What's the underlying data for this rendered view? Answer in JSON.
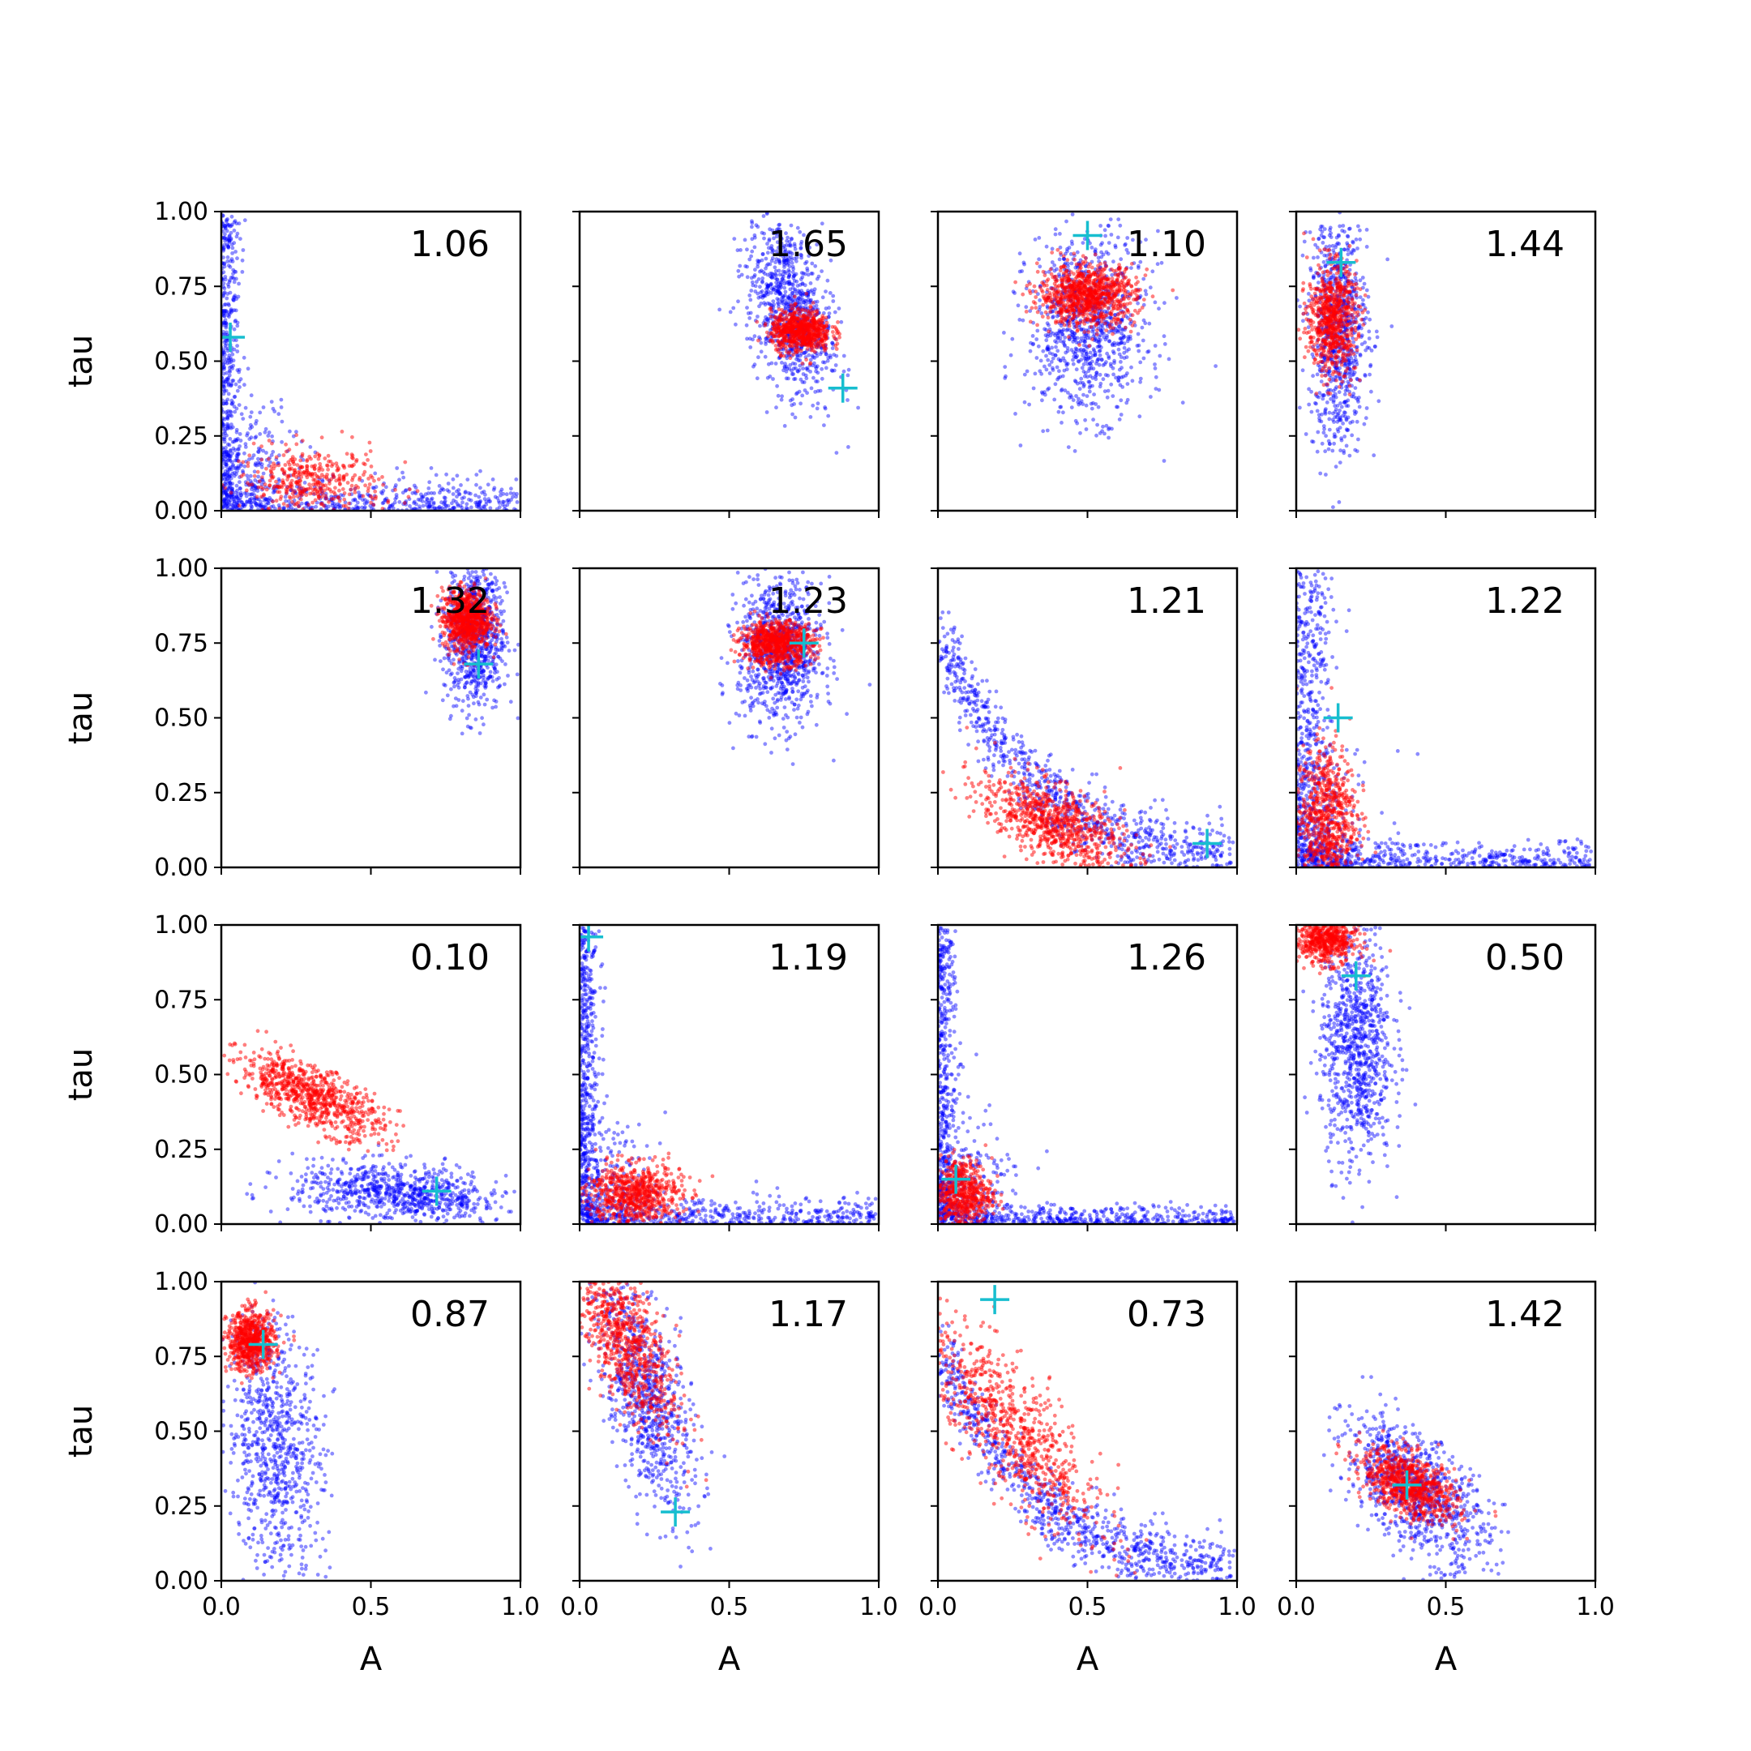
{
  "chart_data": {
    "type": "scatter",
    "layout": "4x4 grid of subplots, shared axes",
    "xlabel": "A",
    "ylabel": "tau",
    "xlim": [
      0.0,
      1.0
    ],
    "ylim": [
      0.0,
      1.0
    ],
    "x_ticks": [
      "0.0",
      "0.5",
      "1.0"
    ],
    "y_ticks": [
      "0.00",
      "0.25",
      "0.50",
      "0.75",
      "1.00"
    ],
    "colors": {
      "blue_points": "#0000ff",
      "red_points": "#ff0000",
      "marker": "#17becf",
      "axes": "#000000"
    },
    "marker_symbol": "+",
    "panels": [
      {
        "label": "1.06",
        "blue": {
          "shape": "L",
          "arm_x": 0.03,
          "arm_y": 0.05
        },
        "red": {
          "cx": 0.3,
          "cy": 0.09,
          "sx": 0.12,
          "sy": 0.06,
          "rho": 0,
          "n": 420
        },
        "marker": [
          0.03,
          0.58
        ]
      },
      {
        "label": "1.65",
        "blue": {
          "cx": 0.7,
          "cy": 0.68,
          "sx": 0.07,
          "sy": 0.15,
          "rho": -0.4,
          "n": 900
        },
        "red": {
          "cx": 0.74,
          "cy": 0.6,
          "sx": 0.05,
          "sy": 0.035,
          "rho": 0,
          "n": 700
        },
        "marker": [
          0.88,
          0.41
        ]
      },
      {
        "label": "1.10",
        "blue": {
          "cx": 0.5,
          "cy": 0.62,
          "sx": 0.1,
          "sy": 0.15,
          "rho": 0,
          "n": 900
        },
        "red": {
          "cx": 0.5,
          "cy": 0.72,
          "sx": 0.08,
          "sy": 0.05,
          "rho": 0,
          "n": 900
        },
        "marker": [
          0.5,
          0.92
        ]
      },
      {
        "label": "1.44",
        "blue": {
          "cx": 0.14,
          "cy": 0.6,
          "sx": 0.05,
          "sy": 0.2,
          "rho": 0,
          "n": 800
        },
        "red": {
          "cx": 0.12,
          "cy": 0.64,
          "sx": 0.04,
          "sy": 0.09,
          "rho": 0,
          "n": 700
        },
        "marker": [
          0.15,
          0.83
        ]
      },
      {
        "label": "1.32",
        "blue": {
          "cx": 0.85,
          "cy": 0.78,
          "sx": 0.05,
          "sy": 0.13,
          "rho": 0,
          "n": 800
        },
        "red": {
          "cx": 0.82,
          "cy": 0.83,
          "sx": 0.04,
          "sy": 0.05,
          "rho": 0,
          "n": 800
        },
        "marker": [
          0.86,
          0.68
        ]
      },
      {
        "label": "1.23",
        "blue": {
          "cx": 0.67,
          "cy": 0.72,
          "sx": 0.07,
          "sy": 0.12,
          "rho": 0,
          "n": 900
        },
        "red": {
          "cx": 0.66,
          "cy": 0.75,
          "sx": 0.06,
          "sy": 0.035,
          "rho": 0,
          "n": 800
        },
        "marker": [
          0.75,
          0.75
        ]
      },
      {
        "label": "1.21",
        "blue": {
          "shape": "banana",
          "tmax": 0.95
        },
        "red": {
          "cx": 0.38,
          "cy": 0.15,
          "sx": 0.12,
          "sy": 0.08,
          "rho": -0.6,
          "n": 800
        },
        "marker": [
          0.9,
          0.08
        ]
      },
      {
        "label": "1.22",
        "blue": {
          "shape": "L",
          "arm_x": 0.06,
          "arm_y": 0.04
        },
        "red": {
          "cx": 0.1,
          "cy": 0.17,
          "sx": 0.05,
          "sy": 0.12,
          "rho": 0,
          "n": 700
        },
        "marker": [
          0.14,
          0.5
        ]
      },
      {
        "label": "0.10",
        "blue": {
          "cx": 0.6,
          "cy": 0.1,
          "sx": 0.18,
          "sy": 0.05,
          "rho": -0.3,
          "n": 800
        },
        "red": {
          "cx": 0.3,
          "cy": 0.43,
          "sx": 0.12,
          "sy": 0.07,
          "rho": -0.7,
          "n": 800
        },
        "marker": [
          0.72,
          0.11
        ]
      },
      {
        "label": "1.19",
        "blue": {
          "shape": "L",
          "arm_x": 0.03,
          "arm_y": 0.04
        },
        "red": {
          "cx": 0.18,
          "cy": 0.1,
          "sx": 0.08,
          "sy": 0.05,
          "rho": 0,
          "n": 700
        },
        "marker": [
          0.03,
          0.96
        ]
      },
      {
        "label": "1.26",
        "blue": {
          "shape": "L",
          "arm_x": 0.03,
          "arm_y": 0.03
        },
        "red": {
          "cx": 0.08,
          "cy": 0.1,
          "sx": 0.05,
          "sy": 0.06,
          "rho": 0,
          "n": 600
        },
        "marker": [
          0.06,
          0.15
        ]
      },
      {
        "label": "0.50",
        "blue": {
          "cx": 0.2,
          "cy": 0.6,
          "sx": 0.06,
          "sy": 0.2,
          "rho": 0,
          "n": 900
        },
        "red": {
          "cx": 0.1,
          "cy": 0.95,
          "sx": 0.05,
          "sy": 0.04,
          "rho": 0,
          "n": 600
        },
        "marker": [
          0.2,
          0.83
        ]
      },
      {
        "label": "0.87",
        "blue": {
          "cx": 0.18,
          "cy": 0.45,
          "sx": 0.08,
          "sy": 0.22,
          "rho": -0.2,
          "n": 800
        },
        "red": {
          "cx": 0.1,
          "cy": 0.8,
          "sx": 0.04,
          "sy": 0.05,
          "rho": 0,
          "n": 700
        },
        "marker": [
          0.14,
          0.79
        ]
      },
      {
        "label": "1.17",
        "blue": {
          "cx": 0.22,
          "cy": 0.62,
          "sx": 0.08,
          "sy": 0.2,
          "rho": -0.6,
          "n": 800
        },
        "red": {
          "cx": 0.15,
          "cy": 0.8,
          "sx": 0.09,
          "sy": 0.15,
          "rho": -0.7,
          "n": 800
        },
        "marker": [
          0.32,
          0.23
        ]
      },
      {
        "label": "0.73",
        "blue": {
          "shape": "banana",
          "tmax": 0.95
        },
        "red": {
          "cx": 0.25,
          "cy": 0.5,
          "sx": 0.15,
          "sy": 0.18,
          "rho": -0.8,
          "n": 800
        },
        "marker": [
          0.19,
          0.94
        ]
      },
      {
        "label": "1.42",
        "blue": {
          "cx": 0.4,
          "cy": 0.3,
          "sx": 0.12,
          "sy": 0.12,
          "rho": -0.6,
          "n": 900
        },
        "red": {
          "cx": 0.38,
          "cy": 0.32,
          "sx": 0.08,
          "sy": 0.06,
          "rho": -0.5,
          "n": 800
        },
        "marker": [
          0.37,
          0.32
        ]
      }
    ]
  }
}
